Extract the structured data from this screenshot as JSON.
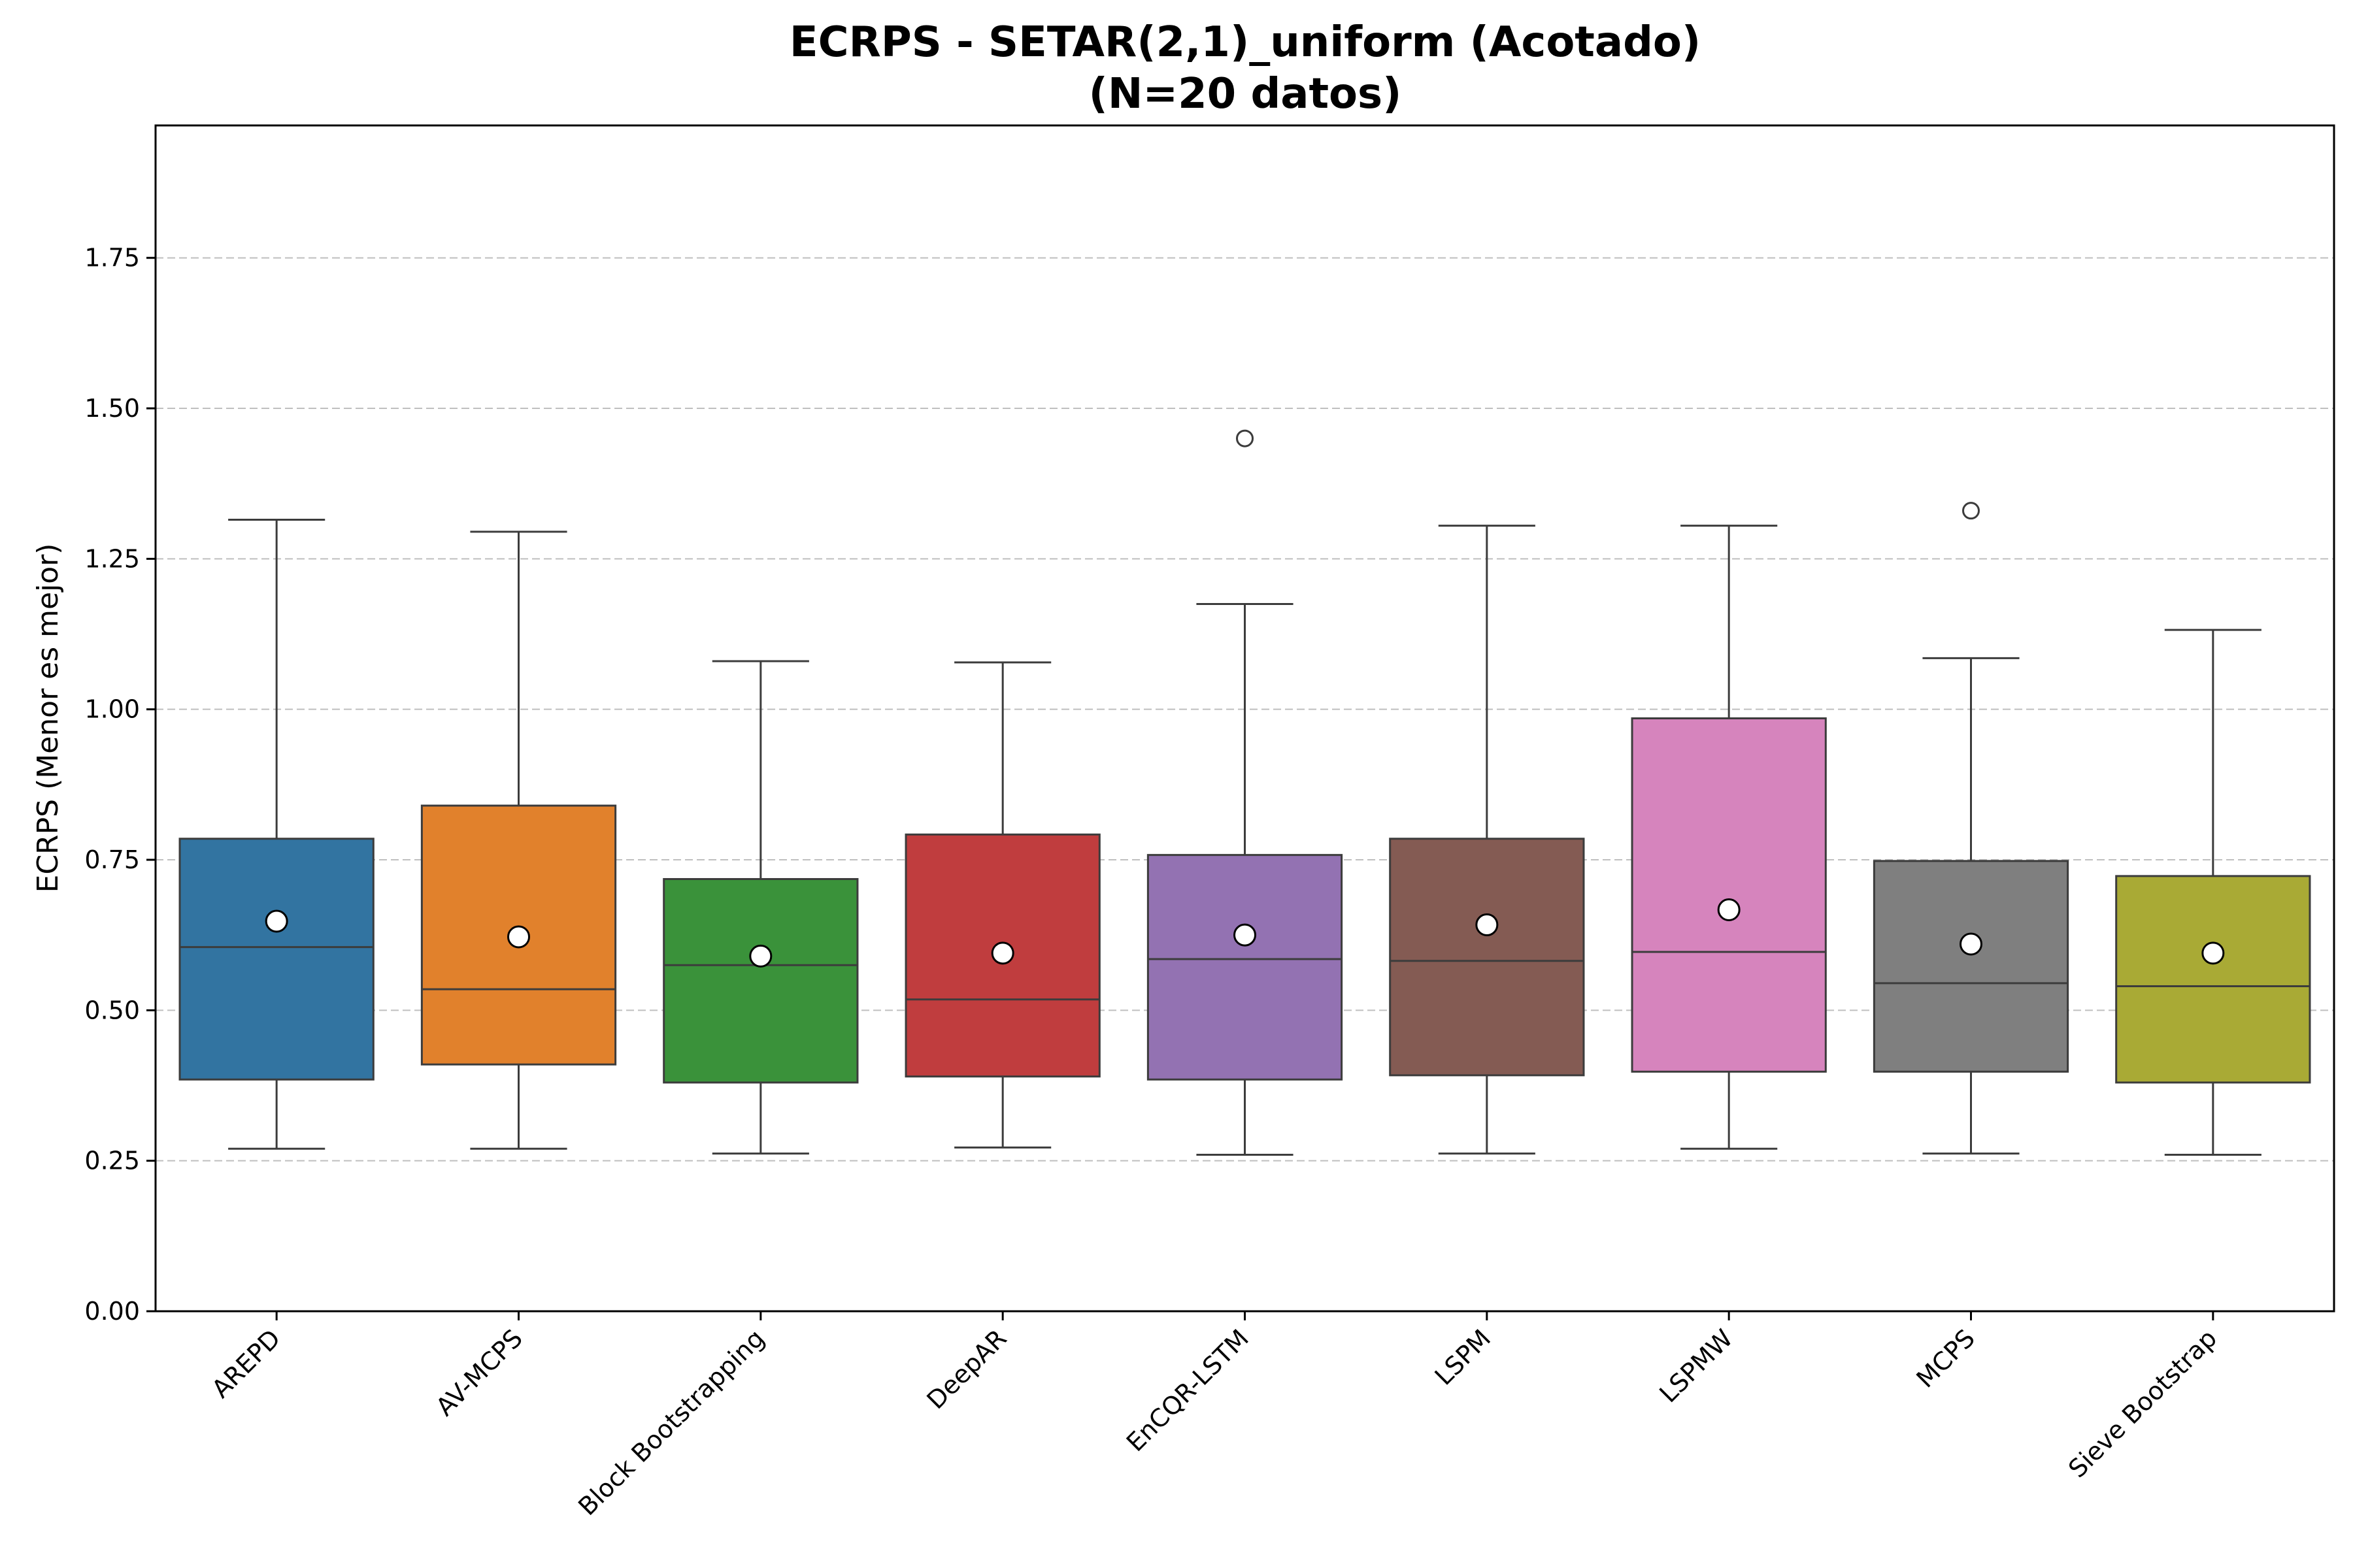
{
  "chart_data": {
    "type": "boxplot",
    "title_lines": [
      "ECRPS - SETAR(2,1)_uniform (Acotado)",
      "(N=20 datos)"
    ],
    "xlabel": "",
    "ylabel": "ECRPS (Menor es mejor)",
    "ylim": [
      0,
      1.97
    ],
    "yticks": [
      0.0,
      0.25,
      0.5,
      0.75,
      1.0,
      1.25,
      1.5,
      1.75
    ],
    "ytick_labels": [
      "0.00",
      "0.25",
      "0.50",
      "0.75",
      "1.00",
      "1.25",
      "1.50",
      "1.75"
    ],
    "grid": "y-dashed",
    "categories": [
      "AREPD",
      "AV-MCPS",
      "Block Bootstrapping",
      "DeepAR",
      "EnCQR-LSTM",
      "LSPM",
      "LSPMW",
      "MCPS",
      "Sieve Bootstrap"
    ],
    "series": [
      {
        "category": "AREPD",
        "color": "#3274a1",
        "whisker_low": 0.27,
        "q1": 0.385,
        "median": 0.605,
        "q3": 0.785,
        "whisker_high": 1.315,
        "mean": 0.648,
        "outliers": []
      },
      {
        "category": "AV-MCPS",
        "color": "#e1812c",
        "whisker_low": 0.27,
        "q1": 0.41,
        "median": 0.535,
        "q3": 0.84,
        "whisker_high": 1.295,
        "mean": 0.622,
        "outliers": []
      },
      {
        "category": "Block Bootstrapping",
        "color": "#3a923a",
        "whisker_low": 0.262,
        "q1": 0.38,
        "median": 0.575,
        "q3": 0.718,
        "whisker_high": 1.08,
        "mean": 0.59,
        "outliers": []
      },
      {
        "category": "DeepAR",
        "color": "#c03d3e",
        "whisker_low": 0.272,
        "q1": 0.39,
        "median": 0.518,
        "q3": 0.792,
        "whisker_high": 1.078,
        "mean": 0.595,
        "outliers": []
      },
      {
        "category": "EnCQR-LSTM",
        "color": "#9372b2",
        "whisker_low": 0.26,
        "q1": 0.385,
        "median": 0.585,
        "q3": 0.758,
        "whisker_high": 1.175,
        "mean": 0.625,
        "outliers": [
          1.45
        ]
      },
      {
        "category": "LSPM",
        "color": "#845b53",
        "whisker_low": 0.262,
        "q1": 0.392,
        "median": 0.582,
        "q3": 0.785,
        "whisker_high": 1.305,
        "mean": 0.642,
        "outliers": []
      },
      {
        "category": "LSPMW",
        "color": "#d684bd",
        "whisker_low": 0.27,
        "q1": 0.398,
        "median": 0.597,
        "q3": 0.985,
        "whisker_high": 1.305,
        "mean": 0.667,
        "outliers": []
      },
      {
        "category": "MCPS",
        "color": "#7f7f7f",
        "whisker_low": 0.262,
        "q1": 0.398,
        "median": 0.545,
        "q3": 0.748,
        "whisker_high": 1.085,
        "mean": 0.61,
        "outliers": [
          1.33
        ]
      },
      {
        "category": "Sieve Bootstrap",
        "color": "#a9aa35",
        "whisker_low": 0.26,
        "q1": 0.38,
        "median": 0.54,
        "q3": 0.723,
        "whisker_high": 1.132,
        "mean": 0.595,
        "outliers": []
      }
    ]
  }
}
